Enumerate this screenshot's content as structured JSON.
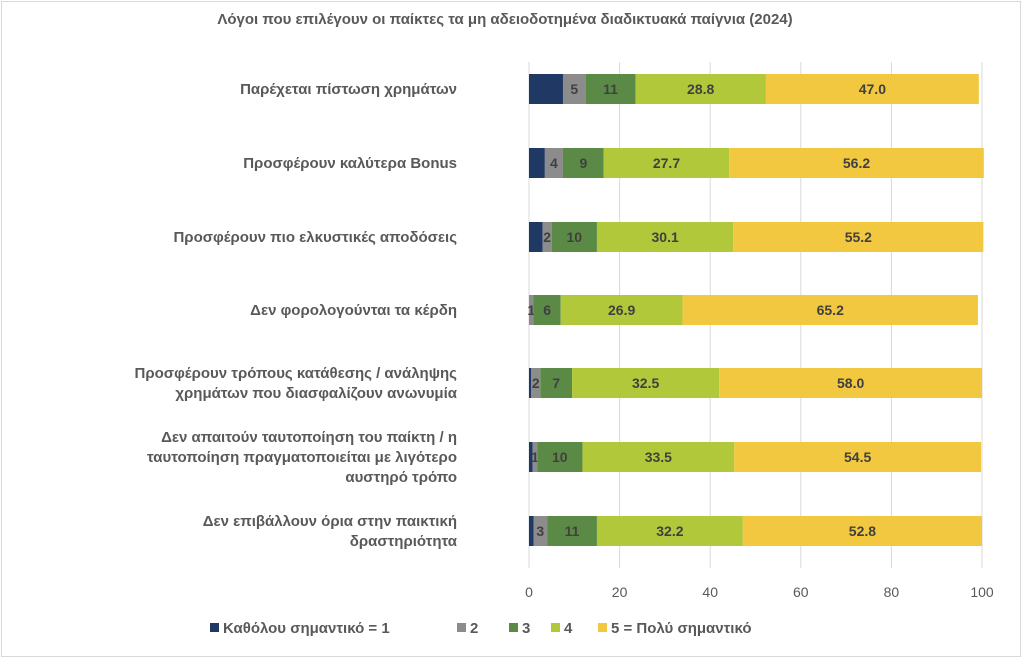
{
  "chart_data": {
    "type": "bar",
    "orientation": "horizontal",
    "stacked": true,
    "title": "Λόγοι που επιλέγουν οι παίκτες τα μη αδειοδοτημένα διαδικτυακά παίγνια (2024)",
    "categories": [
      [
        "Παρέχεται πίστωση χρημάτων"
      ],
      [
        "Προσφέρουν καλύτερα Bonus"
      ],
      [
        "Προσφέρουν πιο ελκυστικές αποδόσεις"
      ],
      [
        "Δεν φορολογούνται τα κέρδη"
      ],
      [
        "Προσφέρουν τρόπους κατάθεσης / ανάληψης",
        "χρημάτων που διασφαλίζουν ανωνυμία"
      ],
      [
        "Δεν απαιτούν ταυτοποίηση του παίκτη / η",
        "ταυτοποίηση πραγματοποιείται με λιγότερο",
        "αυστηρό τρόπο"
      ],
      [
        "Δεν επιβάλλουν όρια στην παικτική",
        "δραστηριότητα"
      ]
    ],
    "series": [
      {
        "name": "Καθόλου σημαντικό = 1",
        "color": "#1f3864",
        "values": [
          7.5,
          3.5,
          3,
          0,
          0.5,
          0.8,
          1.0
        ],
        "labels": [
          "",
          "",
          "",
          "",
          "",
          "",
          ""
        ]
      },
      {
        "name": "2",
        "color": "#8c8c8c",
        "values": [
          5,
          4,
          2,
          1,
          2,
          1,
          3
        ],
        "labels": [
          "5",
          "4",
          "2",
          "1",
          "2",
          "1",
          "3"
        ]
      },
      {
        "name": "3",
        "color": "#5b8a46",
        "values": [
          11,
          9,
          10,
          6,
          7,
          10,
          11
        ],
        "labels": [
          "11",
          "9",
          "10",
          "6",
          "7",
          "10",
          "11"
        ]
      },
      {
        "name": "4",
        "color": "#b1c83b",
        "values": [
          28.8,
          27.7,
          30.1,
          26.9,
          32.5,
          33.5,
          32.2
        ],
        "labels": [
          "28.8",
          "27.7",
          "30.1",
          "26.9",
          "32.5",
          "33.5",
          "32.2"
        ]
      },
      {
        "name": "5 = Πολύ σημαντικό",
        "color": "#f1c83f",
        "values": [
          47.0,
          56.2,
          55.2,
          65.2,
          58.0,
          54.5,
          52.8
        ],
        "labels": [
          "47.0",
          "56.2",
          "55.2",
          "65.2",
          "58.0",
          "54.5",
          "52.8"
        ]
      }
    ],
    "xlim": [
      0,
      100
    ],
    "xticks": [
      "0",
      "20",
      "40",
      "60",
      "80",
      "100"
    ],
    "grid": true,
    "legend": "bottom"
  }
}
